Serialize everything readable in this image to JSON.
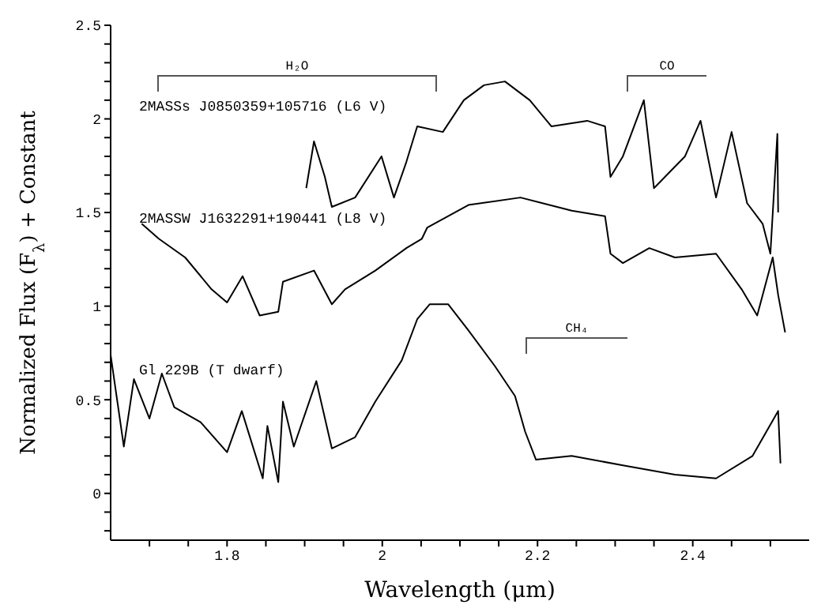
{
  "chart_data": {
    "type": "line",
    "xlabel": "Wavelength (μm)",
    "ylabel": "Normalized Flux (F$_{λ}$) + Constant",
    "xlim": [
      1.65,
      2.55
    ],
    "ylim": [
      -0.25,
      2.5
    ],
    "xticks": [
      {
        "value": 1.7,
        "label": null
      },
      {
        "value": 1.75,
        "label": null
      },
      1.8,
      {
        "value": 1.85,
        "label": null
      },
      {
        "value": 1.9,
        "label": null
      },
      {
        "value": 1.95,
        "label": null
      },
      2,
      {
        "value": 2.05,
        "label": null
      },
      {
        "value": 2.1,
        "label": null
      },
      {
        "value": 2.15,
        "label": null
      },
      2.2,
      {
        "value": 2.25,
        "label": null
      },
      {
        "value": 2.3,
        "label": null
      },
      {
        "value": 2.35,
        "label": null
      },
      2.4,
      {
        "value": 2.45,
        "label": null
      },
      {
        "value": 2.5,
        "label": null
      }
    ],
    "yticks": [
      {
        "value": -0.2,
        "label": null
      },
      {
        "value": -0.1,
        "label": null
      },
      0,
      {
        "value": 0.1,
        "label": null
      },
      {
        "value": 0.2,
        "label": null
      },
      {
        "value": 0.3,
        "label": null
      },
      {
        "value": 0.4,
        "label": null
      },
      0.5,
      {
        "value": 0.6,
        "label": null
      },
      {
        "value": 0.7,
        "label": null
      },
      {
        "value": 0.8,
        "label": null
      },
      {
        "value": 0.9,
        "label": null
      },
      1,
      {
        "value": 1.1,
        "label": null
      },
      {
        "value": 1.2,
        "label": null
      },
      {
        "value": 1.3,
        "label": null
      },
      {
        "value": 1.4,
        "label": null
      },
      1.5,
      {
        "value": 1.6,
        "label": null
      },
      {
        "value": 1.7,
        "label": null
      },
      {
        "value": 1.8,
        "label": null
      },
      {
        "value": 1.9,
        "label": null
      },
      2,
      {
        "value": 2.1,
        "label": null
      },
      {
        "value": 2.2,
        "label": null
      },
      {
        "value": 2.3,
        "label": null
      },
      {
        "value": 2.4,
        "label": null
      },
      2.5
    ],
    "grid": false,
    "legend": false,
    "marker": "none",
    "line_style": "solid",
    "annotations": [
      "H₂O",
      "CO",
      "CH₄"
    ],
    "series": [
      {
        "name": "2MASSs J0850359+105716 (L6 V)",
        "color": "#000000",
        "x": [
          1.902,
          1.912,
          1.926,
          1.935,
          1.965,
          1.999,
          2.015,
          2.031,
          2.045,
          2.078,
          2.105,
          2.131,
          2.158,
          2.19,
          2.218,
          2.264,
          2.287,
          2.294,
          2.31,
          2.337,
          2.35,
          2.39,
          2.41,
          2.43,
          2.45,
          2.47,
          2.49,
          2.5,
          2.509,
          2.51
        ],
        "values": [
          1.63,
          1.88,
          1.69,
          1.53,
          1.58,
          1.8,
          1.58,
          1.77,
          1.96,
          1.93,
          2.1,
          2.18,
          2.2,
          2.1,
          1.96,
          1.99,
          1.96,
          1.69,
          1.8,
          2.1,
          1.63,
          1.8,
          1.99,
          1.58,
          1.93,
          1.55,
          1.44,
          1.28,
          1.92,
          1.5
        ]
      },
      {
        "name": "2MASSW J1632291+190441 (L8 V)",
        "color": "#000000",
        "x": [
          1.69,
          1.712,
          1.746,
          1.78,
          1.8,
          1.82,
          1.842,
          1.866,
          1.872,
          1.912,
          1.935,
          1.952,
          1.991,
          2.031,
          2.051,
          2.058,
          2.111,
          2.178,
          2.244,
          2.287,
          2.294,
          2.31,
          2.344,
          2.377,
          2.43,
          2.463,
          2.483,
          2.503,
          2.51,
          2.519
        ],
        "values": [
          1.44,
          1.36,
          1.26,
          1.09,
          1.02,
          1.16,
          0.95,
          0.97,
          1.13,
          1.19,
          1.01,
          1.09,
          1.19,
          1.31,
          1.36,
          1.42,
          1.54,
          1.58,
          1.51,
          1.48,
          1.28,
          1.23,
          1.31,
          1.26,
          1.28,
          1.09,
          0.95,
          1.26,
          1.06,
          0.86
        ]
      },
      {
        "name": "Gl 229B (T dwarf)",
        "color": "#000000",
        "x": [
          1.65,
          1.667,
          1.68,
          1.7,
          1.716,
          1.732,
          1.766,
          1.8,
          1.819,
          1.846,
          1.852,
          1.866,
          1.872,
          1.886,
          1.915,
          1.935,
          1.965,
          1.991,
          2.025,
          2.045,
          2.061,
          2.085,
          2.111,
          2.145,
          2.171,
          2.184,
          2.198,
          2.244,
          2.31,
          2.377,
          2.43,
          2.477,
          2.51,
          2.513
        ],
        "values": [
          0.74,
          0.25,
          0.61,
          0.4,
          0.64,
          0.46,
          0.38,
          0.22,
          0.44,
          0.08,
          0.36,
          0.06,
          0.49,
          0.25,
          0.6,
          0.24,
          0.3,
          0.49,
          0.71,
          0.93,
          1.01,
          1.01,
          0.87,
          0.68,
          0.52,
          0.33,
          0.18,
          0.2,
          0.15,
          0.1,
          0.08,
          0.2,
          0.44,
          0.16
        ]
      }
    ]
  }
}
